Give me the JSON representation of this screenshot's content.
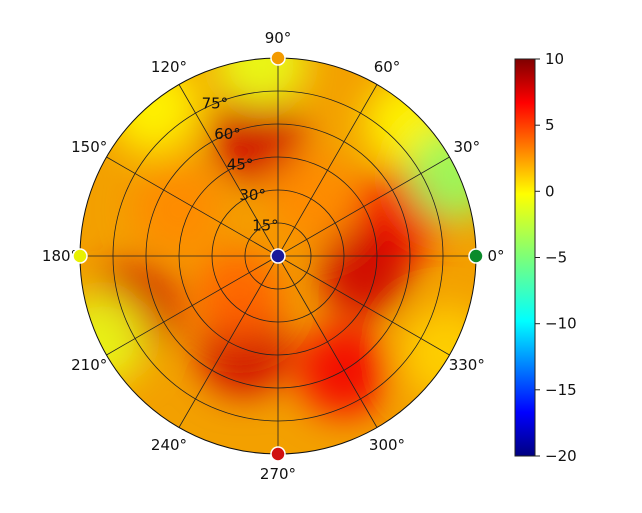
{
  "chart_data": {
    "type": "heatmap",
    "projection": "polar",
    "title": "",
    "angular_tick_labels": [
      "0°",
      "30°",
      "60°",
      "90°",
      "120°",
      "150°",
      "180°",
      "210°",
      "240°",
      "270°",
      "300°",
      "330°"
    ],
    "radial_tick_labels": [
      "15°",
      "30°",
      "45°",
      "60°",
      "75°"
    ],
    "radial_ticks": [
      15,
      30,
      45,
      60,
      75
    ],
    "radial_range": [
      0,
      90
    ],
    "radial_tick_angle": 112.5,
    "grid": true,
    "colorscale": "jet",
    "color_range": [
      -20,
      10
    ],
    "colorbar": {
      "position": "right",
      "ticks": [
        10,
        5,
        0,
        -5,
        -10,
        -15,
        -20
      ],
      "tick_labels": [
        "10",
        "5",
        "0",
        "−5",
        "−10",
        "−15",
        "−20"
      ]
    },
    "markers": [
      {
        "angle": 0,
        "radius": 90,
        "value": -4,
        "color": "#0a8a2a"
      },
      {
        "angle": 90,
        "radius": 90,
        "value": 4,
        "color": "#f39b00"
      },
      {
        "angle": 180,
        "radius": 90,
        "value": -2,
        "color": "#e8f000"
      },
      {
        "angle": 270,
        "radius": 90,
        "value": 9,
        "color": "#d01010"
      },
      {
        "angle": 0,
        "radius": 0,
        "value": -19,
        "color": "#1a1a9a"
      }
    ],
    "field_samples": [
      {
        "angle": 20,
        "radius": 60,
        "value": 7
      },
      {
        "angle": 350,
        "radius": 40,
        "value": 8
      },
      {
        "angle": 100,
        "radius": 55,
        "value": 8
      },
      {
        "angle": 200,
        "radius": 70,
        "value": 8
      },
      {
        "angle": 250,
        "radius": 45,
        "value": 8
      },
      {
        "angle": 300,
        "radius": 60,
        "value": 7
      },
      {
        "angle": 155,
        "radius": 50,
        "value": 3
      },
      {
        "angle": 45,
        "radius": 85,
        "value": 0
      },
      {
        "angle": 25,
        "radius": 88,
        "value": -4
      },
      {
        "angle": 95,
        "radius": 88,
        "value": -1
      },
      {
        "angle": 130,
        "radius": 88,
        "value": 0
      },
      {
        "angle": 205,
        "radius": 88,
        "value": -1
      },
      {
        "angle": 330,
        "radius": 88,
        "value": 1
      },
      {
        "angle": 60,
        "radius": 30,
        "value": 3
      },
      {
        "angle": 225,
        "radius": 25,
        "value": 4
      }
    ]
  }
}
